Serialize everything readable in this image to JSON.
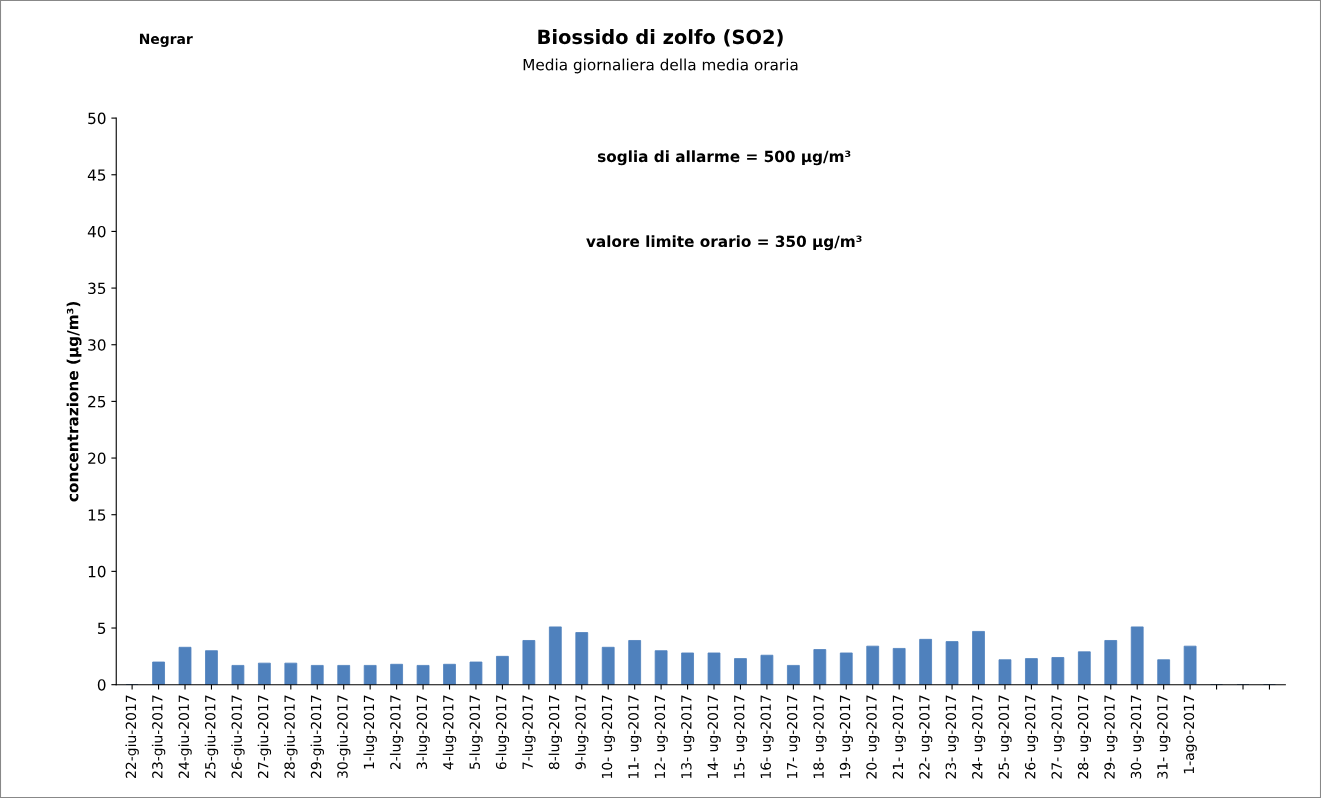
{
  "chart_data": {
    "type": "bar",
    "title": "Biossido di zolfo (SO2)",
    "subtitle": "Media giornaliera della media oraria",
    "ylabel": "concentrazione (μg/m³)",
    "annotations": [
      "Negrar",
      "soglia di allarme = 500 μg/m³",
      "valore limite orario = 350 μg/m³"
    ],
    "categories": [
      "22-giu-2017",
      "23-giu-2017",
      "24-giu-2017",
      "25-giu-2017",
      "26-giu-2017",
      "27-giu-2017",
      "28-giu-2017",
      "29-giu-2017",
      "30-giu-2017",
      "1-lug-2017",
      "2-lug-2017",
      "3-lug-2017",
      "4-lug-2017",
      "5-lug-2017",
      "6-lug-2017",
      "7-lug-2017",
      "8-lug-2017",
      "9-lug-2017",
      "10- ug-2017",
      "11- ug-2017",
      "12- ug-2017",
      "13- ug-2017",
      "14- ug-2017",
      "15- ug-2017",
      "16- ug-2017",
      "17- ug-2017",
      "18- ug-2017",
      "19- ug-2017",
      "20- ug-2017",
      "21- ug-2017",
      "22- ug-2017",
      "23- ug-2017",
      "24- ug-2017",
      "25- ug-2017",
      "26- ug-2017",
      "27- ug-2017",
      "28- ug-2017",
      "29- ug-2017",
      "30- ug-2017",
      "31- ug-2017",
      "1-ago-2017",
      null,
      null,
      null
    ],
    "values": [
      0,
      2.0,
      3.3,
      3.0,
      1.7,
      1.9,
      1.9,
      1.7,
      1.7,
      1.7,
      1.8,
      1.7,
      1.8,
      2.0,
      2.5,
      3.9,
      5.1,
      4.6,
      3.3,
      3.9,
      3.0,
      2.8,
      2.8,
      2.3,
      2.6,
      1.7,
      3.1,
      2.8,
      3.4,
      3.2,
      4.0,
      3.8,
      4.7,
      2.2,
      2.3,
      2.4,
      2.9,
      3.9,
      5.1,
      2.2,
      3.4,
      0,
      0,
      0
    ],
    "color": "#4f81bd",
    "ylim": [
      0,
      50
    ],
    "yticks": [
      0,
      5,
      10,
      15,
      20,
      25,
      30,
      35,
      40,
      45,
      50
    ],
    "grid": false,
    "legend": false
  }
}
